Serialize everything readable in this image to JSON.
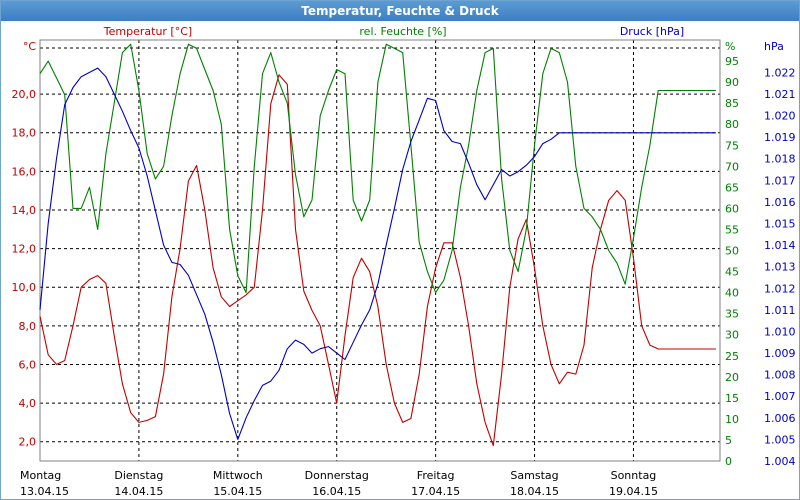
{
  "window": {
    "title": "Temperatur, Feuchte & Druck"
  },
  "chart_data": {
    "type": "line",
    "title": "Temperatur, Feuchte & Druck",
    "x_unit": "hours since Montag 13.04.15 00:00",
    "xlim": [
      0,
      165
    ],
    "days": [
      {
        "name": "Montag",
        "date": "13.04.15"
      },
      {
        "name": "Dienstag",
        "date": "14.04.15"
      },
      {
        "name": "Mittwoch",
        "date": "15.04.15"
      },
      {
        "name": "Donnerstag",
        "date": "16.04.15"
      },
      {
        "name": "Freitag",
        "date": "17.04.15"
      },
      {
        "name": "Samstag",
        "date": "18.04.15"
      },
      {
        "name": "Sonntag",
        "date": "19.04.15"
      }
    ],
    "axes": {
      "temperature": {
        "unit_label": "°C",
        "legend": "Temperatur [°C]",
        "color": "#c00000",
        "side": "left",
        "ylim": [
          1.0,
          22.8
        ],
        "ticks": [
          "2,0",
          "4,0",
          "6,0",
          "8,0",
          "10,0",
          "12,0",
          "14,0",
          "16,0",
          "18,0",
          "20,0"
        ],
        "tick_values": [
          2,
          4,
          6,
          8,
          10,
          12,
          14,
          16,
          18,
          20
        ]
      },
      "humidity": {
        "unit_label": "%",
        "legend": "rel. Feuchte [%]",
        "color": "#008000",
        "side": "right-inner",
        "ylim": [
          0,
          100
        ],
        "ticks": [
          "0",
          "5",
          "10",
          "15",
          "20",
          "25",
          "30",
          "35",
          "40",
          "45",
          "50",
          "55",
          "60",
          "65",
          "70",
          "75",
          "80",
          "85",
          "90",
          "95"
        ],
        "tick_values": [
          0,
          5,
          10,
          15,
          20,
          25,
          30,
          35,
          40,
          45,
          50,
          55,
          60,
          65,
          70,
          75,
          80,
          85,
          90,
          95
        ]
      },
      "pressure": {
        "unit_label": "hPa",
        "legend": "Druck [hPa]",
        "color": "#0000c0",
        "side": "right-outer",
        "ylim": [
          1004.0,
          1023.5
        ],
        "ticks": [
          "1.004",
          "1.005",
          "1.006",
          "1.007",
          "1.008",
          "1.009",
          "1.010",
          "1.011",
          "1.012",
          "1.013",
          "1.014",
          "1.015",
          "1.016",
          "1.017",
          "1.018",
          "1.019",
          "1.020",
          "1.021",
          "1.022"
        ],
        "tick_values": [
          1004,
          1005,
          1006,
          1007,
          1008,
          1009,
          1010,
          1011,
          1012,
          1013,
          1014,
          1015,
          1016,
          1017,
          1018,
          1019,
          1020,
          1021,
          1022
        ]
      }
    },
    "grid": true,
    "series": [
      {
        "name": "Temperatur [°C]",
        "axis": "temperature",
        "color": "#c00000",
        "x": [
          0,
          2,
          4,
          6,
          8,
          10,
          12,
          14,
          16,
          18,
          20,
          22,
          24,
          26,
          28,
          30,
          32,
          34,
          36,
          38,
          40,
          42,
          44,
          46,
          48,
          50,
          52,
          54,
          56,
          58,
          60,
          62,
          64,
          66,
          68,
          70,
          72,
          74,
          76,
          78,
          80,
          82,
          84,
          86,
          88,
          90,
          92,
          94,
          96,
          98,
          100,
          102,
          104,
          106,
          108,
          110,
          112,
          114,
          116,
          118,
          120,
          122,
          124,
          126,
          128,
          130,
          132,
          134,
          136,
          138,
          140,
          142,
          144,
          146,
          148,
          150,
          152,
          154,
          156,
          158,
          160,
          162,
          164
        ],
        "y": [
          8.5,
          6.5,
          6.0,
          6.2,
          8.0,
          10.0,
          10.4,
          10.6,
          10.2,
          7.5,
          5.0,
          3.5,
          3.0,
          3.1,
          3.3,
          5.5,
          9.5,
          12.0,
          15.5,
          16.3,
          14.0,
          11.0,
          9.5,
          9.0,
          9.3,
          9.6,
          10.0,
          14.0,
          19.5,
          21.0,
          20.5,
          13.0,
          9.8,
          8.8,
          8.0,
          6.0,
          4.0,
          7.5,
          10.5,
          11.5,
          10.8,
          9.0,
          6.0,
          4.0,
          3.0,
          3.2,
          5.5,
          9.0,
          11.0,
          12.3,
          12.3,
          10.5,
          8.0,
          5.0,
          3.0,
          1.8,
          5.5,
          10.0,
          12.5,
          13.5,
          11.0,
          8.0,
          6.0,
          5.0,
          5.6,
          5.5,
          7.0,
          11.0,
          13.0,
          14.5,
          15.0,
          14.5,
          11.5,
          8.0,
          7.0,
          6.8,
          6.8,
          6.8,
          6.8,
          6.8,
          6.8,
          6.8,
          6.8
        ]
      },
      {
        "name": "rel. Feuchte [%]",
        "axis": "humidity",
        "color": "#008000",
        "x": [
          0,
          2,
          4,
          6,
          8,
          10,
          12,
          14,
          16,
          18,
          20,
          22,
          24,
          26,
          28,
          30,
          32,
          34,
          36,
          38,
          40,
          42,
          44,
          46,
          48,
          50,
          52,
          54,
          56,
          58,
          60,
          62,
          64,
          66,
          68,
          70,
          72,
          74,
          76,
          78,
          80,
          82,
          84,
          86,
          88,
          90,
          92,
          94,
          96,
          98,
          100,
          102,
          104,
          106,
          108,
          110,
          112,
          114,
          116,
          118,
          120,
          122,
          124,
          126,
          128,
          130,
          132,
          134,
          136,
          138,
          140,
          142,
          144,
          146,
          148,
          150,
          152,
          154,
          156,
          158,
          160,
          162,
          164
        ],
        "y": [
          92,
          95,
          91,
          87,
          60,
          60,
          65,
          55,
          73,
          85,
          97,
          99,
          88,
          73,
          67,
          70,
          82,
          92,
          99,
          98,
          93,
          88,
          80,
          55,
          44,
          40,
          70,
          92,
          97,
          90,
          85,
          68,
          58,
          62,
          82,
          88,
          93,
          92,
          62,
          57,
          62,
          90,
          99,
          98,
          97,
          75,
          52,
          45,
          40,
          43,
          50,
          65,
          75,
          88,
          97,
          98,
          67,
          50,
          45,
          55,
          75,
          92,
          98,
          97,
          90,
          70,
          60,
          58,
          55,
          50,
          47,
          42,
          53,
          65,
          75,
          88,
          88,
          88,
          88,
          88,
          88,
          88,
          88
        ]
      },
      {
        "name": "Druck [hPa]",
        "axis": "pressure",
        "color": "#0000c0",
        "x": [
          0,
          2,
          4,
          6,
          8,
          10,
          12,
          14,
          16,
          18,
          20,
          22,
          24,
          26,
          28,
          30,
          32,
          34,
          36,
          38,
          40,
          42,
          44,
          46,
          48,
          50,
          52,
          54,
          56,
          58,
          60,
          62,
          64,
          66,
          68,
          70,
          72,
          74,
          76,
          78,
          80,
          82,
          84,
          86,
          88,
          90,
          92,
          94,
          96,
          98,
          100,
          102,
          104,
          106,
          108,
          110,
          112,
          114,
          116,
          118,
          120,
          122,
          124,
          126,
          128,
          130,
          132,
          134,
          136,
          138,
          140,
          142,
          144,
          146,
          148,
          150,
          152,
          154,
          156,
          158,
          160,
          162,
          164
        ],
        "y": [
          1011.0,
          1015.0,
          1018.0,
          1020.5,
          1021.3,
          1021.8,
          1022.0,
          1022.2,
          1021.8,
          1021.0,
          1020.2,
          1019.3,
          1018.5,
          1017.2,
          1015.6,
          1014.0,
          1013.2,
          1013.1,
          1012.6,
          1011.7,
          1010.8,
          1009.5,
          1008.0,
          1006.2,
          1005.0,
          1006.0,
          1006.8,
          1007.5,
          1007.7,
          1008.2,
          1009.2,
          1009.6,
          1009.4,
          1009.0,
          1009.2,
          1009.3,
          1009.0,
          1008.7,
          1009.5,
          1010.3,
          1011.0,
          1012.2,
          1014.0,
          1015.7,
          1017.5,
          1018.8,
          1019.8,
          1020.8,
          1020.7,
          1019.3,
          1018.8,
          1018.7,
          1017.8,
          1016.8,
          1016.1,
          1016.8,
          1017.5,
          1017.2,
          1017.4,
          1017.7,
          1018.1,
          1018.7,
          1018.9,
          1019.2,
          1019.2,
          1019.2,
          1019.2,
          1019.2,
          1019.2,
          1019.2,
          1019.2,
          1019.2,
          1019.2,
          1019.2,
          1019.2,
          1019.2,
          1019.2,
          1019.2,
          1019.2,
          1019.2,
          1019.2,
          1019.2,
          1019.2
        ]
      }
    ]
  }
}
